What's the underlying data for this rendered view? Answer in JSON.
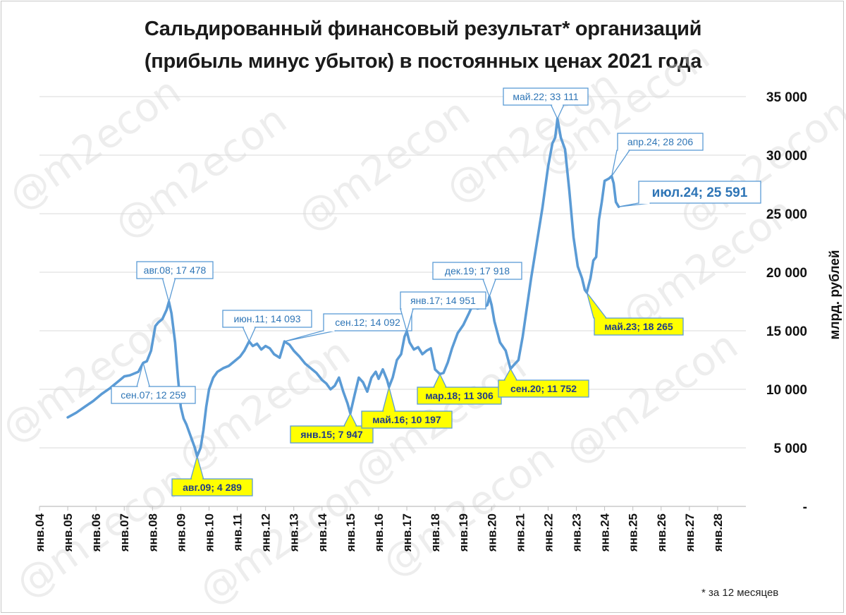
{
  "chart_data": {
    "type": "line",
    "title_line1": "Сальдированный финансовый результат* организаций",
    "title_line2": "(прибыль минус убыток) в постоянных ценах 2021 года",
    "ylabel": "млрд. рублей",
    "footnote": "* за 12 месяцев",
    "watermark": "@m2econ",
    "ylim": [
      0,
      35000
    ],
    "y_ticks": [
      "-",
      "5 000",
      "10 000",
      "15 000",
      "20 000",
      "25 000",
      "30 000",
      "35 000"
    ],
    "y_tick_values": [
      0,
      5000,
      10000,
      15000,
      20000,
      25000,
      30000,
      35000
    ],
    "x_ticks": [
      "янв.04",
      "янв.05",
      "янв.06",
      "янв.07",
      "янв.08",
      "янв.09",
      "янв.10",
      "янв.11",
      "янв.12",
      "янв.13",
      "янв.14",
      "янв.15",
      "янв.16",
      "янв.17",
      "янв.18",
      "янв.19",
      "янв.20",
      "янв.21",
      "янв.22",
      "янв.23",
      "янв.24",
      "янв.25",
      "янв.26",
      "янв.27",
      "янв.28"
    ],
    "x_range_years": [
      2004,
      2029
    ],
    "grid": true,
    "line_color": "#5b9bd5",
    "series": [
      {
        "points": [
          [
            2005.0,
            7600
          ],
          [
            2005.3,
            8000
          ],
          [
            2005.6,
            8500
          ],
          [
            2005.9,
            9000
          ],
          [
            2006.2,
            9600
          ],
          [
            2006.5,
            10100
          ],
          [
            2006.8,
            10700
          ],
          [
            2007.0,
            11100
          ],
          [
            2007.2,
            11200
          ],
          [
            2007.5,
            11500
          ],
          [
            2007.67,
            12259
          ],
          [
            2007.8,
            12400
          ],
          [
            2007.95,
            13300
          ],
          [
            2008.1,
            15400
          ],
          [
            2008.2,
            15700
          ],
          [
            2008.35,
            16000
          ],
          [
            2008.5,
            16800
          ],
          [
            2008.58,
            17478
          ],
          [
            2008.67,
            16500
          ],
          [
            2008.8,
            14000
          ],
          [
            2008.9,
            11000
          ],
          [
            2009.0,
            8500
          ],
          [
            2009.1,
            7500
          ],
          [
            2009.2,
            7000
          ],
          [
            2009.35,
            6000
          ],
          [
            2009.5,
            5000
          ],
          [
            2009.58,
            4289
          ],
          [
            2009.7,
            5000
          ],
          [
            2009.8,
            6500
          ],
          [
            2009.9,
            8500
          ],
          [
            2010.0,
            10000
          ],
          [
            2010.15,
            11000
          ],
          [
            2010.3,
            11500
          ],
          [
            2010.5,
            11800
          ],
          [
            2010.7,
            12000
          ],
          [
            2010.9,
            12400
          ],
          [
            2011.1,
            12800
          ],
          [
            2011.25,
            13300
          ],
          [
            2011.42,
            14093
          ],
          [
            2011.55,
            13700
          ],
          [
            2011.7,
            13900
          ],
          [
            2011.85,
            13400
          ],
          [
            2012.0,
            13700
          ],
          [
            2012.15,
            13500
          ],
          [
            2012.3,
            13000
          ],
          [
            2012.5,
            12700
          ],
          [
            2012.67,
            14092
          ],
          [
            2012.85,
            13800
          ],
          [
            2013.0,
            13300
          ],
          [
            2013.2,
            12800
          ],
          [
            2013.4,
            12200
          ],
          [
            2013.6,
            11800
          ],
          [
            2013.8,
            11400
          ],
          [
            2014.0,
            10800
          ],
          [
            2014.15,
            10500
          ],
          [
            2014.3,
            10000
          ],
          [
            2014.45,
            10300
          ],
          [
            2014.6,
            11000
          ],
          [
            2014.75,
            9800
          ],
          [
            2014.9,
            8800
          ],
          [
            2015.0,
            7947
          ],
          [
            2015.15,
            9500
          ],
          [
            2015.3,
            11000
          ],
          [
            2015.45,
            10600
          ],
          [
            2015.6,
            9800
          ],
          [
            2015.75,
            11000
          ],
          [
            2015.9,
            11500
          ],
          [
            2016.0,
            10900
          ],
          [
            2016.15,
            11700
          ],
          [
            2016.3,
            10800
          ],
          [
            2016.37,
            10197
          ],
          [
            2016.5,
            11000
          ],
          [
            2016.65,
            12500
          ],
          [
            2016.8,
            13000
          ],
          [
            2016.92,
            14500
          ],
          [
            2017.0,
            14951
          ],
          [
            2017.1,
            14000
          ],
          [
            2017.25,
            13400
          ],
          [
            2017.4,
            13600
          ],
          [
            2017.55,
            13000
          ],
          [
            2017.7,
            13300
          ],
          [
            2017.85,
            13500
          ],
          [
            2018.0,
            11700
          ],
          [
            2018.17,
            11306
          ],
          [
            2018.3,
            11400
          ],
          [
            2018.45,
            12300
          ],
          [
            2018.6,
            13500
          ],
          [
            2018.8,
            14800
          ],
          [
            2019.0,
            15500
          ],
          [
            2019.2,
            16500
          ],
          [
            2019.35,
            17300
          ],
          [
            2019.5,
            16900
          ],
          [
            2019.7,
            17000
          ],
          [
            2019.85,
            17200
          ],
          [
            2019.92,
            17918
          ],
          [
            2020.0,
            17200
          ],
          [
            2020.1,
            15800
          ],
          [
            2020.3,
            14000
          ],
          [
            2020.5,
            13300
          ],
          [
            2020.6,
            12400
          ],
          [
            2020.67,
            11752
          ],
          [
            2020.8,
            12100
          ],
          [
            2020.95,
            12500
          ],
          [
            2021.1,
            14500
          ],
          [
            2021.25,
            17000
          ],
          [
            2021.4,
            19500
          ],
          [
            2021.6,
            22500
          ],
          [
            2021.8,
            25500
          ],
          [
            2022.0,
            29000
          ],
          [
            2022.15,
            31000
          ],
          [
            2022.25,
            31500
          ],
          [
            2022.33,
            33111
          ],
          [
            2022.45,
            31500
          ],
          [
            2022.6,
            30500
          ],
          [
            2022.75,
            27000
          ],
          [
            2022.9,
            23000
          ],
          [
            2023.05,
            20500
          ],
          [
            2023.2,
            19500
          ],
          [
            2023.3,
            18500
          ],
          [
            2023.37,
            18265
          ],
          [
            2023.5,
            19500
          ],
          [
            2023.6,
            21000
          ],
          [
            2023.7,
            21300
          ],
          [
            2023.8,
            24500
          ],
          [
            2023.9,
            26000
          ],
          [
            2024.0,
            27800
          ],
          [
            2024.15,
            28000
          ],
          [
            2024.25,
            28206
          ],
          [
            2024.32,
            27600
          ],
          [
            2024.4,
            26000
          ],
          [
            2024.5,
            25591
          ]
        ]
      }
    ],
    "annotations": [
      {
        "text": "авг.08;  17 478",
        "label_label": "авг.08;  17 478",
        "style": "blue"
      },
      {
        "text": "сен.07;  12 259",
        "style": "blue"
      },
      {
        "text": "авг.09;  4 289",
        "style": "yellow"
      },
      {
        "text": "июн.11;  14 093",
        "style": "blue"
      },
      {
        "text": "сен.12;  14 092",
        "style": "blue"
      },
      {
        "text": "янв.15;  7 947",
        "style": "yellow"
      },
      {
        "text": "май.16;  10 197",
        "style": "yellow"
      },
      {
        "text": "янв.17;  14 951",
        "style": "blue"
      },
      {
        "text": "мар.18;  11 306",
        "style": "yellow"
      },
      {
        "text": "дек.19;  17 918",
        "style": "blue"
      },
      {
        "text": "сен.20;  11 752",
        "style": "yellow"
      },
      {
        "text": "май.22;  33 111",
        "style": "blue"
      },
      {
        "text": "май.23;  18 265",
        "style": "yellow"
      },
      {
        "text": "апр.24;  28 206",
        "style": "blue"
      },
      {
        "text": "июл.24;  25 591",
        "style": "blue-large"
      }
    ]
  }
}
